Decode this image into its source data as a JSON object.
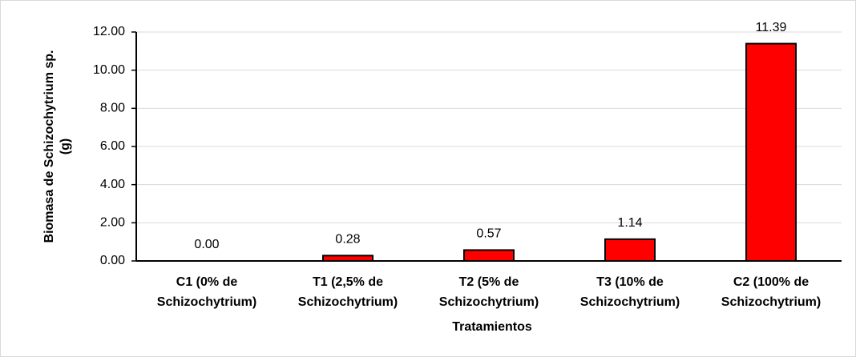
{
  "chart_data": {
    "type": "bar",
    "xlabel": "Tratamientos",
    "ylabel": [
      "Biomasa de Schizochytrium sp.",
      "(g)"
    ],
    "categories": [
      [
        "C1 (0% de",
        "Schizochytrium)"
      ],
      [
        "T1 (2,5% de",
        "Schizochytrium)"
      ],
      [
        "T2 (5% de",
        "Schizochytrium)"
      ],
      [
        "T3 (10% de",
        "Schizochytrium)"
      ],
      [
        "C2 (100% de",
        "Schizochytrium)"
      ]
    ],
    "values": [
      0,
      0.28,
      0.57,
      1.14,
      11.39
    ],
    "value_labels": [
      "0.00",
      "0.28",
      "0.57",
      "1.14",
      "11.39"
    ],
    "color": "#ff0000",
    "ylim": [
      0,
      12
    ],
    "yticks": [
      {
        "value": 0,
        "label": "0.00"
      },
      {
        "value": 2,
        "label": "2.00"
      },
      {
        "value": 4,
        "label": "4.00"
      },
      {
        "value": 6,
        "label": "6.00"
      },
      {
        "value": 8,
        "label": "8.00"
      },
      {
        "value": 10,
        "label": "10.00"
      },
      {
        "value": 12,
        "label": "12.00"
      }
    ],
    "grid": true
  }
}
